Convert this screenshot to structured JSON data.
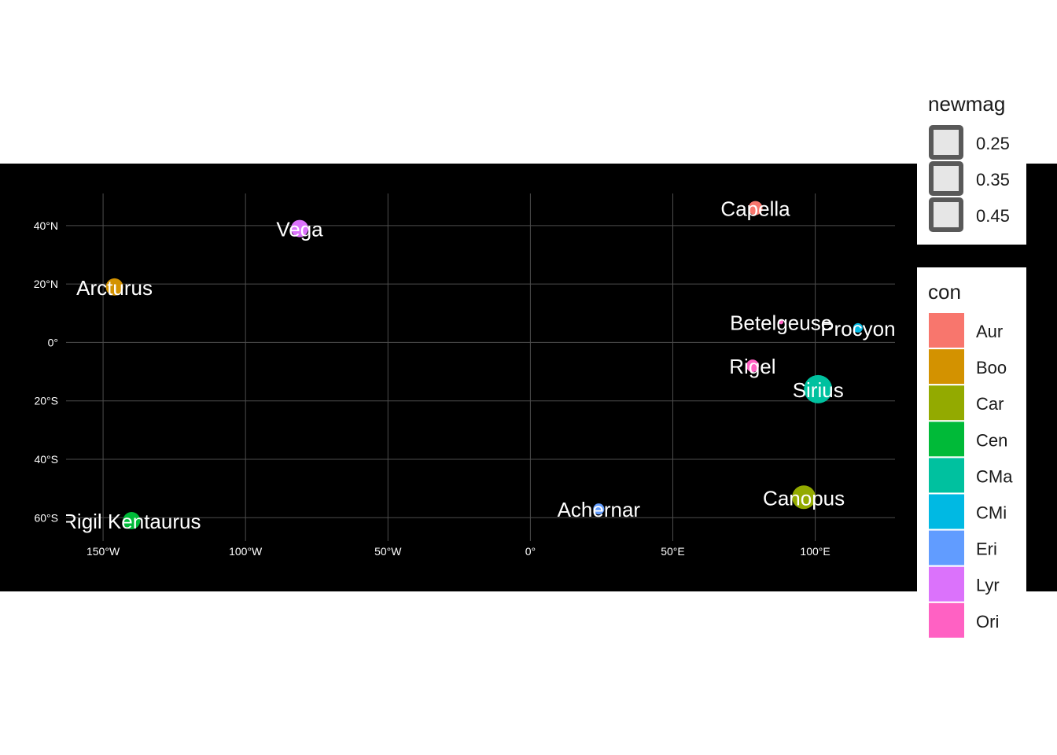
{
  "chart_data": {
    "type": "scatter",
    "xlim": [
      -163,
      128
    ],
    "ylim": [
      -68,
      51
    ],
    "x_ticks": [
      {
        "value": -150,
        "label": "150°W"
      },
      {
        "value": -100,
        "label": "100°W"
      },
      {
        "value": -50,
        "label": "50°W"
      },
      {
        "value": 0,
        "label": "0°"
      },
      {
        "value": 50,
        "label": "50°E"
      },
      {
        "value": 100,
        "label": "100°E"
      }
    ],
    "y_ticks": [
      {
        "value": 40,
        "label": "40°N"
      },
      {
        "value": 20,
        "label": "20°N"
      },
      {
        "value": 0,
        "label": "0°"
      },
      {
        "value": -20,
        "label": "20°S"
      },
      {
        "value": -40,
        "label": "40°S"
      },
      {
        "value": -60,
        "label": "60°S"
      }
    ],
    "points": [
      {
        "name": "Capella",
        "x": 79,
        "y": 46,
        "con": "Aur",
        "size": 9
      },
      {
        "name": "Vega",
        "x": -81,
        "y": 39,
        "con": "Lyr",
        "size": 11
      },
      {
        "name": "Arcturus",
        "x": -146,
        "y": 19,
        "con": "Boo",
        "size": 11
      },
      {
        "name": "Betelgeuse",
        "x": 88,
        "y": 7,
        "con": "Ori",
        "size": 3
      },
      {
        "name": "Procyon",
        "x": 115,
        "y": 5,
        "con": "CMi",
        "size": 6
      },
      {
        "name": "Rigel",
        "x": 78,
        "y": -8,
        "con": "Ori",
        "size": 8
      },
      {
        "name": "Sirius",
        "x": 101,
        "y": -16,
        "con": "CMa",
        "size": 18
      },
      {
        "name": "Canopus",
        "x": 96,
        "y": -53,
        "con": "Car",
        "size": 15
      },
      {
        "name": "Achernar",
        "x": 24,
        "y": -57,
        "con": "Eri",
        "size": 7
      },
      {
        "name": "Rigil Kentaurus",
        "x": -140,
        "y": -61,
        "con": "Cen",
        "size": 11
      }
    ],
    "legend_size": {
      "title": "newmag",
      "entries": [
        "0.25",
        "0.35",
        "0.45"
      ],
      "placement": "right"
    },
    "legend_color": {
      "title": "con",
      "placement": "right",
      "entries": [
        {
          "label": "Aur",
          "color": "#F8766D"
        },
        {
          "label": "Boo",
          "color": "#D39200"
        },
        {
          "label": "Car",
          "color": "#93AA00"
        },
        {
          "label": "Cen",
          "color": "#00BA38"
        },
        {
          "label": "CMa",
          "color": "#00C19F"
        },
        {
          "label": "CMi",
          "color": "#00B9E3"
        },
        {
          "label": "Eri",
          "color": "#619CFF"
        },
        {
          "label": "Lyr",
          "color": "#DB72FB"
        },
        {
          "label": "Ori",
          "color": "#FF61C3"
        }
      ]
    },
    "colors": {
      "panel_background": "#000000",
      "grid": "#4d4d4d",
      "text": "#ffffff",
      "legend_key_fill": "#e6e6e6",
      "legend_key_border": "#595959"
    },
    "grid": true
  }
}
